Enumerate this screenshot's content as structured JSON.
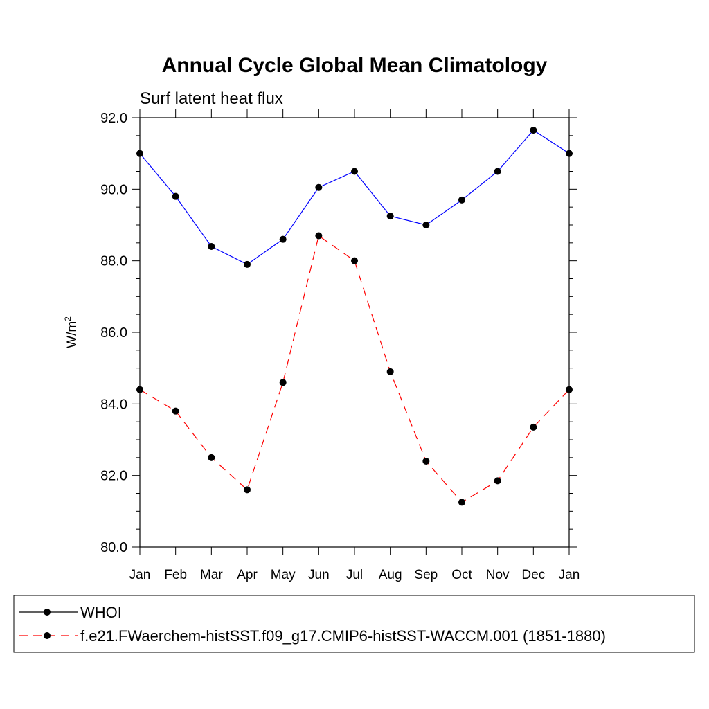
{
  "chart_data": {
    "type": "line",
    "title": "Annual Cycle Global Mean Climatology",
    "subtitle": "Surf latent heat flux",
    "ylabel": "W/m",
    "ylabel_superscript": "2",
    "xlabel": "",
    "categories": [
      "Jan",
      "Feb",
      "Mar",
      "Apr",
      "May",
      "Jun",
      "Jul",
      "Aug",
      "Sep",
      "Oct",
      "Nov",
      "Dec",
      "Jan"
    ],
    "ylim": [
      80.0,
      92.0
    ],
    "yticks": [
      "80.0",
      "82.0",
      "84.0",
      "86.0",
      "88.0",
      "90.0",
      "92.0"
    ],
    "grid": false,
    "legend_position": "bottom",
    "series": [
      {
        "name": "WHOI",
        "color": "#0000ff",
        "line_style": "solid",
        "marker": "filled-circle",
        "values": [
          91.0,
          89.8,
          88.4,
          87.9,
          88.6,
          90.05,
          90.5,
          89.25,
          89.0,
          89.7,
          90.5,
          91.65,
          91.0
        ]
      },
      {
        "name": "f.e21.FWaerchem-histSST.f09_g17.CMIP6-histSST-WACCM.001 (1851-1880)",
        "color": "#ff0000",
        "line_style": "dashed",
        "marker": "filled-circle",
        "values": [
          84.4,
          83.8,
          82.5,
          81.6,
          84.6,
          88.7,
          88.0,
          84.9,
          82.4,
          81.25,
          81.85,
          83.35,
          84.4
        ]
      }
    ]
  }
}
